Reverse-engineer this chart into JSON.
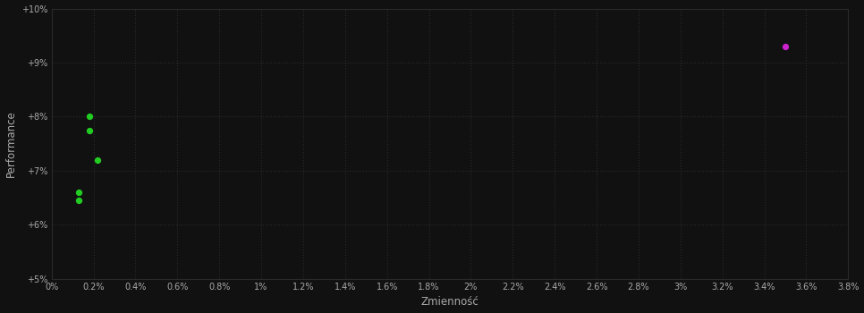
{
  "background_color": "#111111",
  "plot_bg_color": "#111111",
  "grid_color": "#2a2a2a",
  "text_color": "#aaaaaa",
  "xlabel": "Zmienność",
  "ylabel": "Performance",
  "xlim": [
    0.0,
    0.038
  ],
  "ylim": [
    0.05,
    0.1
  ],
  "xticks": [
    0.0,
    0.002,
    0.004,
    0.006,
    0.008,
    0.01,
    0.012,
    0.014,
    0.016,
    0.018,
    0.02,
    0.022,
    0.024,
    0.026,
    0.028,
    0.03,
    0.032,
    0.034,
    0.036,
    0.038
  ],
  "yticks": [
    0.05,
    0.06,
    0.07,
    0.08,
    0.09,
    0.1
  ],
  "green_points": [
    [
      0.0018,
      0.08
    ],
    [
      0.0018,
      0.0775
    ],
    [
      0.0022,
      0.072
    ],
    [
      0.0013,
      0.066
    ],
    [
      0.0013,
      0.0645
    ]
  ],
  "magenta_point": [
    0.035,
    0.093
  ],
  "green_color": "#22cc22",
  "magenta_color": "#cc22cc",
  "point_size": 18,
  "figsize": [
    9.66,
    3.5
  ],
  "dpi": 100
}
